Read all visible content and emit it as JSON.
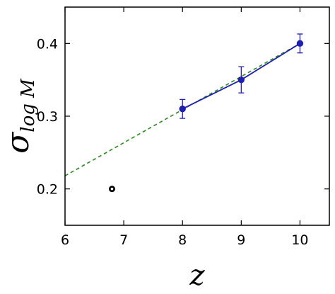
{
  "chart_data": {
    "type": "scatter",
    "xlabel": "z",
    "ylabel_main": "σ",
    "ylabel_sub": "log M",
    "xlim": [
      6,
      10.5
    ],
    "ylim": [
      0.15,
      0.45
    ],
    "xticks": [
      6,
      7,
      8,
      9,
      10
    ],
    "yticks": [
      0.2,
      0.3,
      0.4
    ],
    "xtick_labels": [
      "6",
      "7",
      "8",
      "9",
      "10"
    ],
    "ytick_labels": [
      "0.2",
      "0.3",
      "0.4"
    ],
    "grid": false,
    "series": [
      {
        "style": "points-with-errorbars-and-line",
        "color": "#1f1fb0",
        "x": [
          8,
          9,
          10
        ],
        "y": [
          0.31,
          0.35,
          0.4
        ],
        "yerr": [
          0.013,
          0.018,
          0.013
        ]
      },
      {
        "style": "dashed-line",
        "color": "#2a8a1f",
        "x": [
          6,
          10
        ],
        "y": [
          0.218,
          0.4
        ]
      },
      {
        "style": "ring-marker",
        "color": "#000000",
        "x": [
          6.8
        ],
        "y": [
          0.2
        ]
      }
    ]
  }
}
